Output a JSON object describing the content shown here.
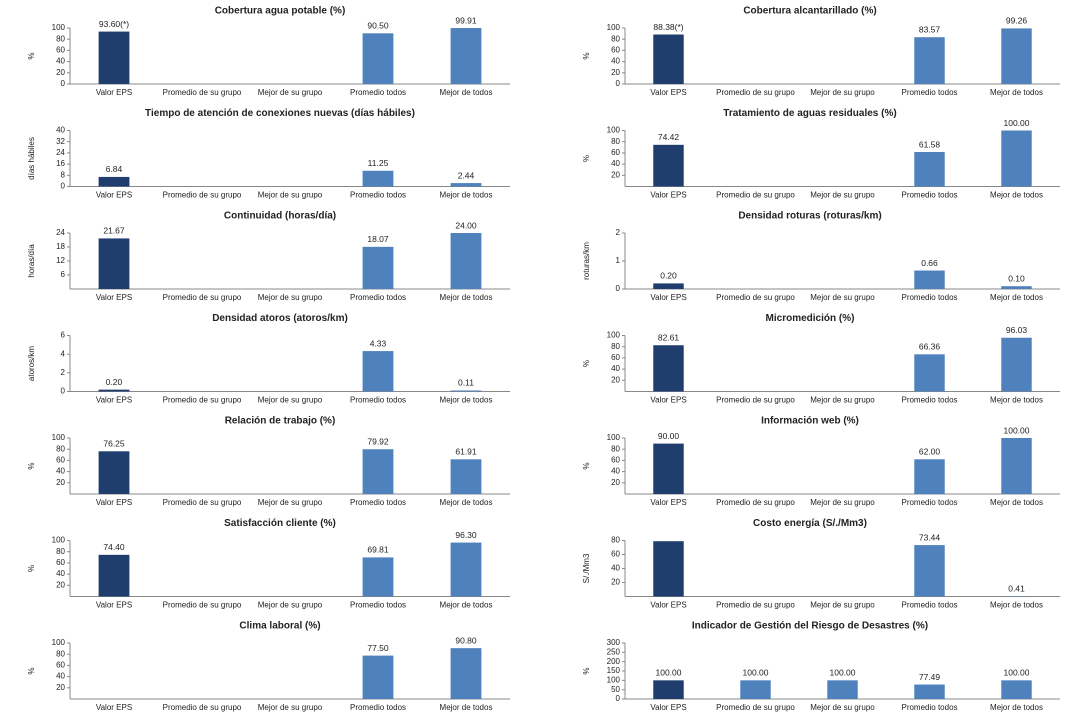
{
  "chart_data": [
    {
      "type": "bar",
      "title": "Cobertura agua potable (%)",
      "y_label": "%",
      "categories": [
        "Valor EPS",
        "Promedio de su grupo",
        "Mejor de su grupo",
        "Promedio todos",
        "Mejor de todos"
      ],
      "values": [
        93.6,
        null,
        null,
        90.5,
        99.91
      ],
      "value_labels": [
        "93.60(*)",
        null,
        null,
        "90.50",
        "99.91"
      ],
      "colors": [
        "#1f3e6e",
        "#4f81bd",
        "#4f81bd",
        "#4f81bd",
        "#4f81bd"
      ],
      "ylim": [
        0,
        100
      ],
      "yticks": [
        0,
        20,
        40,
        60,
        80,
        100
      ]
    },
    {
      "type": "bar",
      "title": "Tiempo de atención de conexiones nuevas (días hábiles)",
      "y_label": "días hábiles",
      "categories": [
        "Valor EPS",
        "Promedio de su grupo",
        "Mejor de su grupo",
        "Promedio todos",
        "Mejor de todos"
      ],
      "values": [
        6.84,
        null,
        null,
        11.25,
        2.44
      ],
      "value_labels": [
        "6.84",
        null,
        null,
        "11.25",
        "2.44"
      ],
      "colors": [
        "#1f3e6e",
        "#4f81bd",
        "#4f81bd",
        "#4f81bd",
        "#4f81bd"
      ],
      "ylim": [
        0,
        40
      ],
      "yticks": [
        0,
        8,
        16,
        24,
        32,
        40
      ]
    },
    {
      "type": "bar",
      "title": "Continuidad (horas/día)",
      "y_label": "horas/día",
      "categories": [
        "Valor EPS",
        "Promedio de su grupo",
        "Mejor de su grupo",
        "Promedio todos",
        "Mejor de todos"
      ],
      "values": [
        21.67,
        null,
        null,
        18.07,
        24.0
      ],
      "value_labels": [
        "21.67",
        null,
        null,
        "18.07",
        "24.00"
      ],
      "colors": [
        "#1f3e6e",
        "#4f81bd",
        "#4f81bd",
        "#4f81bd",
        "#4f81bd"
      ],
      "ylim": [
        0,
        24
      ],
      "yticks": [
        6,
        12,
        18,
        24
      ]
    },
    {
      "type": "bar",
      "title": "Densidad atoros (atoros/km)",
      "y_label": "atoros/km",
      "categories": [
        "Valor EPS",
        "Promedio de su grupo",
        "Mejor de su grupo",
        "Promedio todos",
        "Mejor de todos"
      ],
      "values": [
        0.2,
        null,
        null,
        4.33,
        0.11
      ],
      "value_labels": [
        "0.20",
        null,
        null,
        "4.33",
        "0.11"
      ],
      "colors": [
        "#1f3e6e",
        "#4f81bd",
        "#4f81bd",
        "#4f81bd",
        "#4f81bd"
      ],
      "ylim": [
        0,
        6
      ],
      "yticks": [
        0,
        2,
        4,
        6
      ]
    },
    {
      "type": "bar",
      "title": "Relación de trabajo (%)",
      "y_label": "%",
      "categories": [
        "Valor EPS",
        "Promedio de su grupo",
        "Mejor de su grupo",
        "Promedio todos",
        "Mejor de todos"
      ],
      "values": [
        76.25,
        null,
        null,
        79.92,
        61.91
      ],
      "value_labels": [
        "76.25",
        null,
        null,
        "79.92",
        "61.91"
      ],
      "colors": [
        "#1f3e6e",
        "#4f81bd",
        "#4f81bd",
        "#4f81bd",
        "#4f81bd"
      ],
      "ylim": [
        0,
        100
      ],
      "yticks": [
        20,
        40,
        60,
        80,
        100
      ]
    },
    {
      "type": "bar",
      "title": "Satisfacción cliente (%)",
      "y_label": "%",
      "categories": [
        "Valor EPS",
        "Promedio de su grupo",
        "Mejor de su grupo",
        "Promedio todos",
        "Mejor de todos"
      ],
      "values": [
        74.4,
        null,
        null,
        69.81,
        96.3
      ],
      "value_labels": [
        "74.40",
        null,
        null,
        "69.81",
        "96.30"
      ],
      "colors": [
        "#1f3e6e",
        "#4f81bd",
        "#4f81bd",
        "#4f81bd",
        "#4f81bd"
      ],
      "ylim": [
        0,
        100
      ],
      "yticks": [
        20,
        40,
        60,
        80,
        100
      ]
    },
    {
      "type": "bar",
      "title": "Clima laboral (%)",
      "y_label": "%",
      "categories": [
        "Valor EPS",
        "Promedio de su grupo",
        "Mejor de su grupo",
        "Promedio todos",
        "Mejor de todos"
      ],
      "values": [
        null,
        null,
        null,
        77.5,
        90.8
      ],
      "value_labels": [
        null,
        null,
        null,
        "77.50",
        "90.80"
      ],
      "colors": [
        "#1f3e6e",
        "#4f81bd",
        "#4f81bd",
        "#4f81bd",
        "#4f81bd"
      ],
      "ylim": [
        0,
        100
      ],
      "yticks": [
        20,
        40,
        60,
        80,
        100
      ]
    },
    {
      "type": "bar",
      "title": "Cobertura alcantarillado (%)",
      "y_label": "%",
      "categories": [
        "Valor EPS",
        "Promedio de su grupo",
        "Mejor de su grupo",
        "Promedio todos",
        "Mejor de todos"
      ],
      "values": [
        88.38,
        null,
        null,
        83.57,
        99.26
      ],
      "value_labels": [
        "88.38(*)",
        null,
        null,
        "83.57",
        "99.26"
      ],
      "colors": [
        "#1f3e6e",
        "#4f81bd",
        "#4f81bd",
        "#4f81bd",
        "#4f81bd"
      ],
      "ylim": [
        0,
        100
      ],
      "yticks": [
        0,
        20,
        40,
        60,
        80,
        100
      ]
    },
    {
      "type": "bar",
      "title": "Tratamiento de aguas residuales (%)",
      "y_label": "%",
      "categories": [
        "Valor EPS",
        "Promedio de su grupo",
        "Mejor de su grupo",
        "Promedio todos",
        "Mejor de todos"
      ],
      "values": [
        74.42,
        null,
        null,
        61.58,
        100.0
      ],
      "value_labels": [
        "74.42",
        null,
        null,
        "61.58",
        "100.00"
      ],
      "colors": [
        "#1f3e6e",
        "#4f81bd",
        "#4f81bd",
        "#4f81bd",
        "#4f81bd"
      ],
      "ylim": [
        0,
        100
      ],
      "yticks": [
        20,
        40,
        60,
        80,
        100
      ]
    },
    {
      "type": "bar",
      "title": "Densidad roturas (roturas/km)",
      "y_label": "roturas/km",
      "categories": [
        "Valor EPS",
        "Promedio de su grupo",
        "Mejor de su grupo",
        "Promedio todos",
        "Mejor de todos"
      ],
      "values": [
        0.2,
        null,
        null,
        0.66,
        0.1
      ],
      "value_labels": [
        "0.20",
        null,
        null,
        "0.66",
        "0.10"
      ],
      "colors": [
        "#1f3e6e",
        "#4f81bd",
        "#4f81bd",
        "#4f81bd",
        "#4f81bd"
      ],
      "ylim": [
        0,
        2
      ],
      "yticks": [
        0,
        1,
        2
      ]
    },
    {
      "type": "bar",
      "title": "Micromedición (%)",
      "y_label": "%",
      "categories": [
        "Valor EPS",
        "Promedio de su grupo",
        "Mejor de su grupo",
        "Promedio todos",
        "Mejor de todos"
      ],
      "values": [
        82.61,
        null,
        null,
        66.36,
        96.03
      ],
      "value_labels": [
        "82.61",
        null,
        null,
        "66.36",
        "96.03"
      ],
      "colors": [
        "#1f3e6e",
        "#4f81bd",
        "#4f81bd",
        "#4f81bd",
        "#4f81bd"
      ],
      "ylim": [
        0,
        100
      ],
      "yticks": [
        20,
        40,
        60,
        80,
        100
      ]
    },
    {
      "type": "bar",
      "title": "Información web (%)",
      "y_label": "%",
      "categories": [
        "Valor EPS",
        "Promedio de su grupo",
        "Mejor de su grupo",
        "Promedio todos",
        "Mejor de todos"
      ],
      "values": [
        90.0,
        null,
        null,
        62.0,
        100.0
      ],
      "value_labels": [
        "90.00",
        null,
        null,
        "62.00",
        "100.00"
      ],
      "colors": [
        "#1f3e6e",
        "#4f81bd",
        "#4f81bd",
        "#4f81bd",
        "#4f81bd"
      ],
      "ylim": [
        0,
        100
      ],
      "yticks": [
        20,
        40,
        60,
        80,
        100
      ]
    },
    {
      "type": "bar",
      "title": "Costo energía (S/./Mm3)",
      "y_label": "S/./Mm3",
      "categories": [
        "Valor EPS",
        "Promedio de su grupo",
        "Mejor de su grupo",
        "Promedio todos",
        "Mejor de todos"
      ],
      "values": [
        79,
        null,
        null,
        73.44,
        0.41
      ],
      "value_labels": [
        null,
        null,
        null,
        "73.44",
        "0.41"
      ],
      "colors": [
        "#1f3e6e",
        "#4f81bd",
        "#4f81bd",
        "#4f81bd",
        "#4f81bd"
      ],
      "ylim": [
        0,
        80
      ],
      "yticks": [
        20,
        40,
        60,
        80
      ]
    },
    {
      "type": "bar",
      "title": "Indicador de Gestión del Riesgo de Desastres (%)",
      "y_label": "%",
      "categories": [
        "Valor EPS",
        "Promedio de su grupo",
        "Mejor de su grupo",
        "Promedio todos",
        "Mejor de todos"
      ],
      "values": [
        100.0,
        100.0,
        100.0,
        77.49,
        100.0
      ],
      "value_labels": [
        "100.00",
        "100.00",
        "100.00",
        "77.49",
        "100.00"
      ],
      "colors": [
        "#1f3e6e",
        "#4f81bd",
        "#4f81bd",
        "#4f81bd",
        "#4f81bd"
      ],
      "ylim": [
        0,
        300
      ],
      "yticks": [
        0,
        50,
        100,
        150,
        200,
        250,
        300
      ]
    }
  ]
}
